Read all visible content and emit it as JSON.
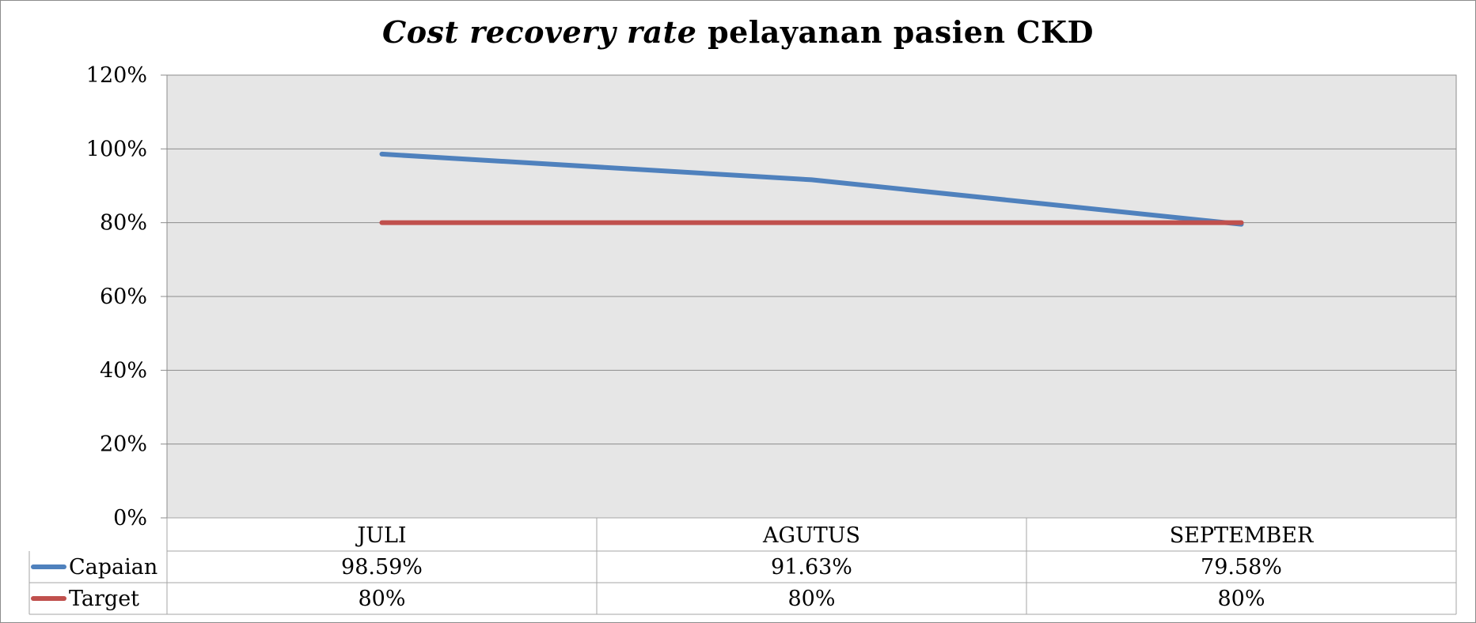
{
  "chart_data": {
    "type": "line",
    "title_italic": "Cost recovery rate",
    "title_rest": "pelayanan pasien CKD",
    "categories": [
      "JULI",
      "AGUTUS",
      "SEPTEMBER"
    ],
    "series": [
      {
        "name": "Capaian",
        "values": [
          98.59,
          91.63,
          79.58
        ],
        "labels": [
          "98.59%",
          "91.63%",
          "79.58%"
        ],
        "color": "#4f81bd"
      },
      {
        "name": "Target",
        "values": [
          80,
          80,
          80
        ],
        "labels": [
          "80%",
          "80%",
          "80%"
        ],
        "color": "#c0504d"
      }
    ],
    "ylim": [
      0,
      120
    ],
    "yticks": [
      0,
      20,
      40,
      60,
      80,
      100,
      120
    ],
    "ytick_labels": [
      "0%",
      "20%",
      "40%",
      "60%",
      "80%",
      "100%",
      "120%"
    ],
    "grid": true,
    "plot_background": "#e6e6e6",
    "legend": "data-table"
  }
}
